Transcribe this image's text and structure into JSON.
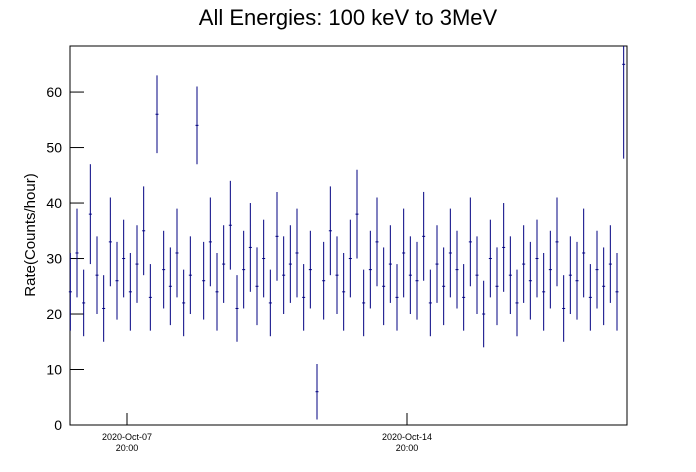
{
  "chart_data": {
    "type": "errorbar",
    "title": "All Energies:  100 keV to 3MeV",
    "y_label": "Rate(Counts/hour)",
    "x": [
      "2020-Oct-06 10:00",
      "2020-Oct-06 14:00",
      "2020-Oct-06 18:00",
      "2020-Oct-06 22:00",
      "2020-Oct-07 02:00",
      "2020-Oct-07 06:00",
      "2020-Oct-07 10:00",
      "2020-Oct-07 14:00",
      "2020-Oct-07 18:00",
      "2020-Oct-07 22:00",
      "2020-Oct-08 02:00",
      "2020-Oct-08 06:00",
      "2020-Oct-08 10:00",
      "2020-Oct-08 14:00",
      "2020-Oct-08 18:00",
      "2020-Oct-08 22:00",
      "2020-Oct-09 02:00",
      "2020-Oct-09 06:00",
      "2020-Oct-09 10:00",
      "2020-Oct-09 14:00",
      "2020-Oct-09 18:00",
      "2020-Oct-09 22:00",
      "2020-Oct-10 02:00",
      "2020-Oct-10 06:00",
      "2020-Oct-10 10:00",
      "2020-Oct-10 14:00",
      "2020-Oct-10 18:00",
      "2020-Oct-10 22:00",
      "2020-Oct-11 02:00",
      "2020-Oct-11 06:00",
      "2020-Oct-11 10:00",
      "2020-Oct-11 14:00",
      "2020-Oct-11 18:00",
      "2020-Oct-11 22:00",
      "2020-Oct-12 02:00",
      "2020-Oct-12 06:00",
      "2020-Oct-12 10:00",
      "2020-Oct-12 14:00",
      "2020-Oct-12 18:00",
      "2020-Oct-12 22:00",
      "2020-Oct-13 02:00",
      "2020-Oct-13 06:00",
      "2020-Oct-13 10:00",
      "2020-Oct-13 14:00",
      "2020-Oct-13 18:00",
      "2020-Oct-13 22:00",
      "2020-Oct-14 02:00",
      "2020-Oct-14 06:00",
      "2020-Oct-14 10:00",
      "2020-Oct-14 14:00",
      "2020-Oct-14 18:00",
      "2020-Oct-14 22:00",
      "2020-Oct-15 02:00",
      "2020-Oct-15 06:00",
      "2020-Oct-15 10:00",
      "2020-Oct-15 14:00",
      "2020-Oct-15 18:00",
      "2020-Oct-15 22:00",
      "2020-Oct-16 02:00",
      "2020-Oct-16 06:00",
      "2020-Oct-16 10:00",
      "2020-Oct-16 14:00",
      "2020-Oct-16 18:00",
      "2020-Oct-16 22:00",
      "2020-Oct-17 02:00",
      "2020-Oct-17 06:00",
      "2020-Oct-17 10:00",
      "2020-Oct-17 14:00",
      "2020-Oct-17 18:00",
      "2020-Oct-17 22:00",
      "2020-Oct-18 02:00",
      "2020-Oct-18 06:00",
      "2020-Oct-18 10:00",
      "2020-Oct-18 14:00",
      "2020-Oct-18 18:00",
      "2020-Oct-18 22:00",
      "2020-Oct-19 02:00",
      "2020-Oct-19 06:00",
      "2020-Oct-19 10:00",
      "2020-Oct-19 14:00",
      "2020-Oct-19 18:00",
      "2020-Oct-19 22:00",
      "2020-Oct-20 02:00",
      "2020-Oct-20 06:00"
    ],
    "series": [
      {
        "color": "#000080",
        "values": [
          24,
          31,
          22,
          38,
          27,
          21,
          33,
          26,
          30,
          24,
          29,
          35,
          23,
          56,
          28,
          25,
          31,
          22,
          27,
          54,
          26,
          33,
          24,
          29,
          36,
          21,
          28,
          32,
          25,
          30,
          22,
          34,
          27,
          29,
          31,
          23,
          28,
          6,
          26,
          35,
          27,
          24,
          30,
          38,
          22,
          28,
          33,
          25,
          29,
          23,
          31,
          27,
          26,
          34,
          22,
          29,
          25,
          31,
          28,
          23,
          33,
          27,
          20,
          30,
          25,
          32,
          27,
          22,
          29,
          26,
          30,
          24,
          28,
          33,
          21,
          27,
          26,
          31,
          23,
          28,
          25,
          29,
          24,
          65
        ],
        "errors": [
          7,
          8,
          6,
          9,
          7,
          6,
          8,
          7,
          7,
          7,
          7,
          8,
          6,
          7,
          7,
          7,
          8,
          6,
          7,
          7,
          7,
          8,
          7,
          7,
          8,
          6,
          7,
          8,
          7,
          7,
          6,
          8,
          7,
          7,
          8,
          6,
          7,
          5,
          7,
          8,
          7,
          7,
          7,
          8,
          6,
          7,
          8,
          7,
          7,
          6,
          8,
          7,
          7,
          8,
          6,
          7,
          7,
          8,
          7,
          6,
          8,
          7,
          6,
          7,
          7,
          8,
          7,
          6,
          7,
          7,
          7,
          7,
          7,
          8,
          6,
          7,
          7,
          8,
          6,
          7,
          7,
          7,
          7,
          17
        ]
      }
    ],
    "xlim": [
      "2020-Oct-06 09:48",
      "2020-Oct-20 08:00"
    ],
    "xticks": [
      {
        "value": "2020-Oct-07 20:00",
        "label": [
          "2020-Oct-07",
          "20:00"
        ]
      },
      {
        "value": "2020-Oct-14 20:00",
        "label": [
          "2020-Oct-14",
          "20:00"
        ]
      }
    ],
    "ylim": [
      0,
      68.3
    ],
    "yticks": [
      0,
      10,
      20,
      30,
      40,
      50,
      60
    ]
  }
}
